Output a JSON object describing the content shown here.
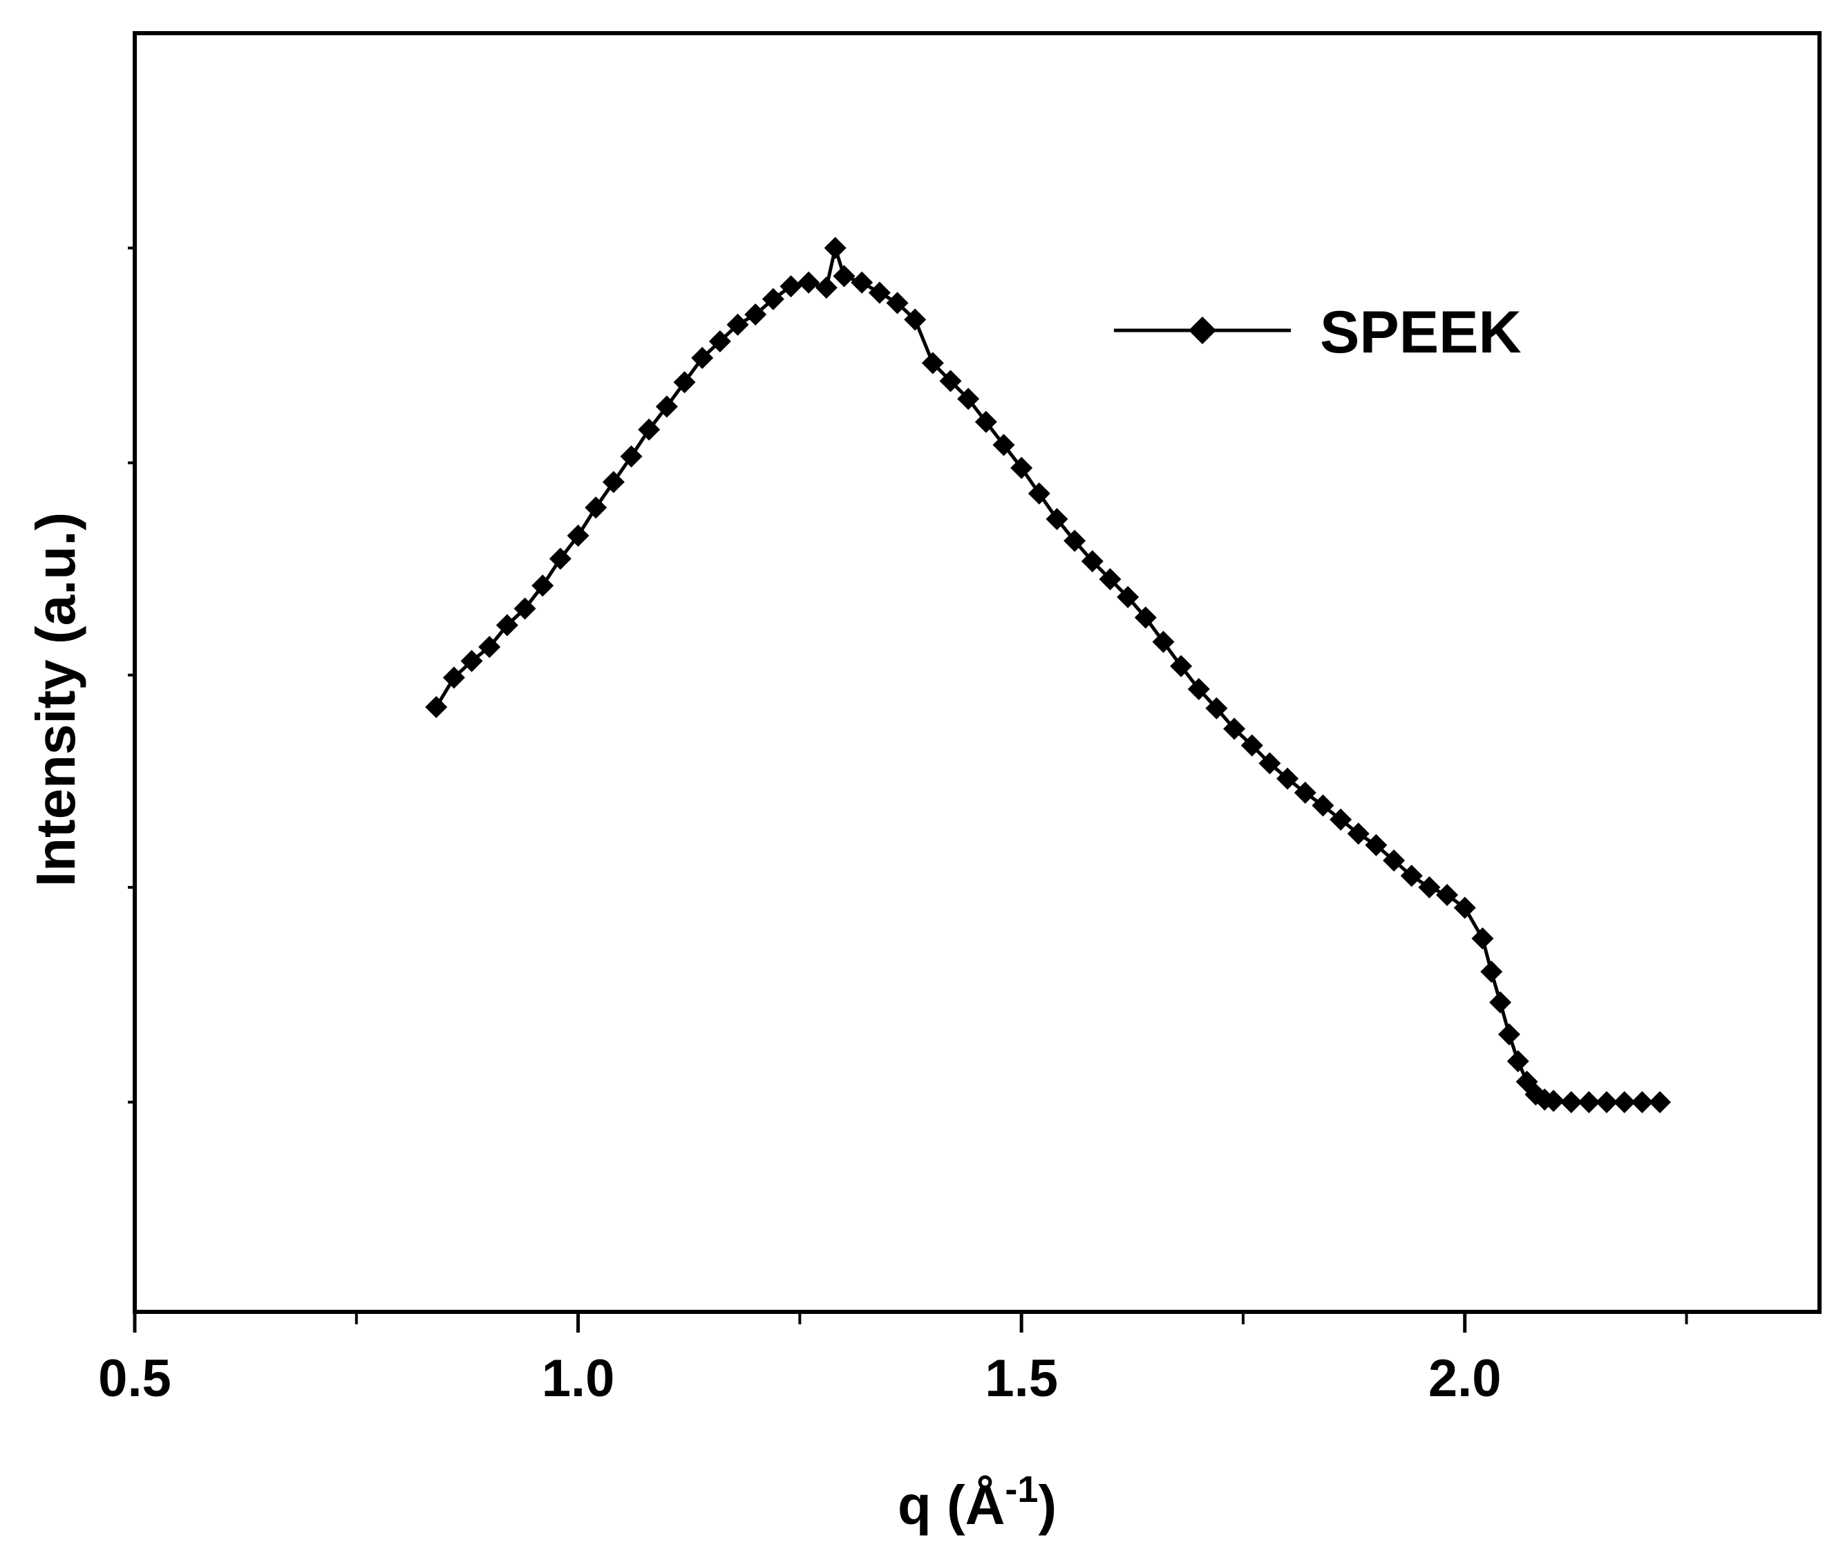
{
  "chart_data": {
    "type": "line",
    "title": "",
    "xlabel": "q (Å",
    "xlabel_superscript": "-1",
    "xlabel_suffix": ")",
    "ylabel": "Intensity (a.u.)",
    "xlim": [
      0.5,
      2.4
    ],
    "ylim": [
      0,
      100
    ],
    "x_ticks_major": [
      "0.5",
      "1.0",
      "1.5",
      "2.0"
    ],
    "x_ticks_major_values": [
      0.5,
      1.0,
      1.5,
      2.0
    ],
    "x_ticks_minor_values": [
      0.75,
      1.25,
      1.75,
      2.25
    ],
    "y_ticks_values": [
      16.4,
      33.2,
      49.8,
      66.4,
      83.2
    ],
    "y_tick_labels_shown": false,
    "grid": false,
    "legend_position": "top-right",
    "marker": "diamond",
    "color": "#000000",
    "series": [
      {
        "name": "SPEEK",
        "points": [
          [
            0.84,
            47.3
          ],
          [
            0.86,
            49.6
          ],
          [
            0.88,
            50.9
          ],
          [
            0.9,
            52.0
          ],
          [
            0.92,
            53.7
          ],
          [
            0.94,
            55.0
          ],
          [
            0.96,
            56.8
          ],
          [
            0.98,
            58.9
          ],
          [
            1.0,
            60.7
          ],
          [
            1.02,
            62.9
          ],
          [
            1.04,
            64.9
          ],
          [
            1.06,
            66.9
          ],
          [
            1.08,
            69.0
          ],
          [
            1.1,
            70.8
          ],
          [
            1.12,
            72.7
          ],
          [
            1.14,
            74.6
          ],
          [
            1.16,
            75.9
          ],
          [
            1.18,
            77.2
          ],
          [
            1.2,
            78.0
          ],
          [
            1.22,
            79.2
          ],
          [
            1.24,
            80.2
          ],
          [
            1.26,
            80.5
          ],
          [
            1.28,
            80.1
          ],
          [
            1.29,
            83.2
          ],
          [
            1.3,
            81.0
          ],
          [
            1.32,
            80.5
          ],
          [
            1.34,
            79.7
          ],
          [
            1.36,
            78.9
          ],
          [
            1.38,
            77.6
          ],
          [
            1.4,
            74.2
          ],
          [
            1.42,
            72.8
          ],
          [
            1.44,
            71.4
          ],
          [
            1.46,
            69.6
          ],
          [
            1.48,
            67.8
          ],
          [
            1.5,
            66.0
          ],
          [
            1.52,
            64.0
          ],
          [
            1.54,
            62.0
          ],
          [
            1.56,
            60.3
          ],
          [
            1.58,
            58.7
          ],
          [
            1.6,
            57.3
          ],
          [
            1.62,
            55.9
          ],
          [
            1.64,
            54.3
          ],
          [
            1.66,
            52.4
          ],
          [
            1.68,
            50.5
          ],
          [
            1.7,
            48.7
          ],
          [
            1.72,
            47.2
          ],
          [
            1.74,
            45.6
          ],
          [
            1.76,
            44.3
          ],
          [
            1.78,
            42.9
          ],
          [
            1.8,
            41.7
          ],
          [
            1.82,
            40.6
          ],
          [
            1.84,
            39.6
          ],
          [
            1.86,
            38.5
          ],
          [
            1.88,
            37.4
          ],
          [
            1.9,
            36.5
          ],
          [
            1.92,
            35.3
          ],
          [
            1.94,
            34.1
          ],
          [
            1.96,
            33.2
          ],
          [
            1.98,
            32.6
          ],
          [
            2.0,
            31.6
          ],
          [
            2.02,
            29.2
          ],
          [
            2.03,
            26.6
          ],
          [
            2.04,
            24.2
          ],
          [
            2.05,
            21.7
          ],
          [
            2.06,
            19.6
          ],
          [
            2.07,
            18.0
          ],
          [
            2.08,
            17.0
          ],
          [
            2.09,
            16.6
          ],
          [
            2.1,
            16.5
          ],
          [
            2.12,
            16.4
          ],
          [
            2.14,
            16.4
          ],
          [
            2.16,
            16.4
          ],
          [
            2.18,
            16.4
          ],
          [
            2.2,
            16.4
          ],
          [
            2.22,
            16.4
          ]
        ]
      }
    ]
  }
}
